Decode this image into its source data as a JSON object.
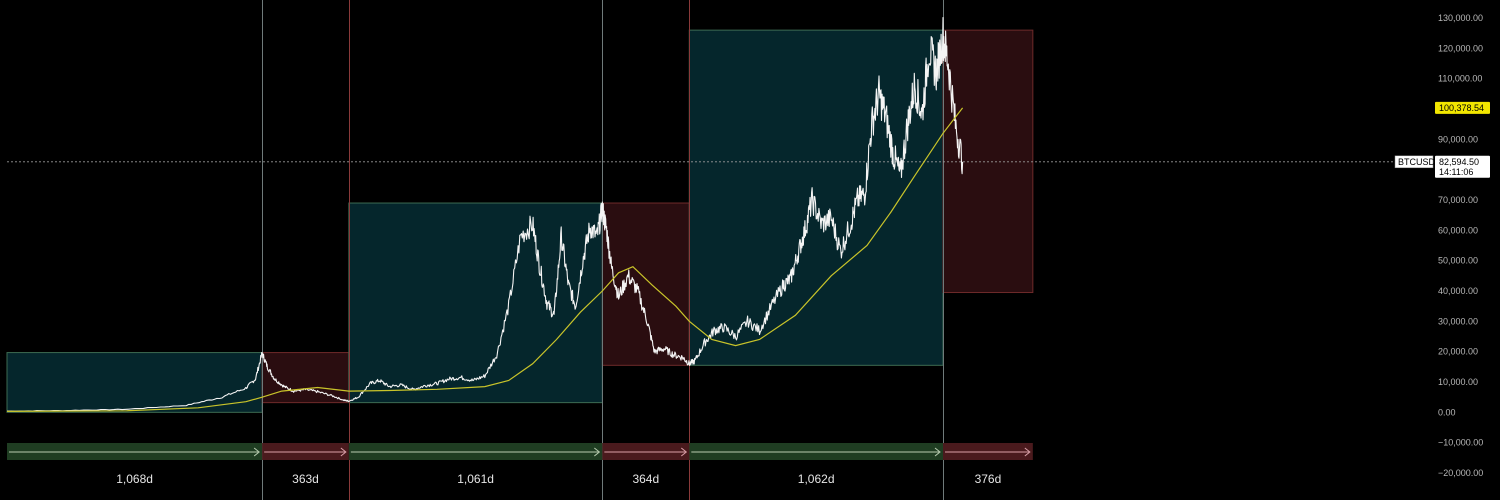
{
  "chart_data": {
    "type": "line",
    "symbol": "BTCUSD",
    "y_axis": {
      "min": -20000,
      "max": 130000,
      "ticks": [
        130000,
        120000,
        110000,
        100000,
        90000,
        80000,
        70000,
        60000,
        50000,
        40000,
        30000,
        20000,
        10000,
        0,
        -10000,
        -20000
      ],
      "tick_labels": [
        "130,000.00",
        "120,000.00",
        "110,000.00",
        "",
        "90,000.00",
        "",
        "70,000.00",
        "60,000.00",
        "50,000.00",
        "40,000.00",
        "30,000.00",
        "20,000.00",
        "10,000.00",
        "0.00",
        "−10,000.00",
        "−20,000.00"
      ]
    },
    "price_tags": {
      "ma": {
        "value": 100378.54,
        "label": "100,378.54",
        "color": "#f2e600"
      },
      "last": {
        "value": 82594.5,
        "label": "82,594.50",
        "countdown": "14:11:06",
        "symbol_label": "BTCUSD"
      }
    },
    "phases": [
      {
        "kind": "bull",
        "x_start": 0.0,
        "x_end": 1.068,
        "y_low": 0,
        "y_high": 19700,
        "duration_label": "1,068d"
      },
      {
        "kind": "bear",
        "x_start": 1.068,
        "x_end": 1.431,
        "y_low": 3200,
        "y_high": 19700,
        "duration_label": "363d"
      },
      {
        "kind": "bull",
        "x_start": 1.431,
        "x_end": 2.492,
        "y_low": 3200,
        "y_high": 69000,
        "duration_label": "1,061d"
      },
      {
        "kind": "bear",
        "x_start": 2.492,
        "x_end": 2.856,
        "y_low": 15500,
        "y_high": 69000,
        "duration_label": "364d"
      },
      {
        "kind": "bull",
        "x_start": 2.856,
        "x_end": 3.918,
        "y_low": 15500,
        "y_high": 126000,
        "duration_label": "1,062d"
      },
      {
        "kind": "bear",
        "x_start": 3.918,
        "x_end": 4.294,
        "y_low": 39500,
        "y_high": 126000,
        "duration_label": "376d"
      }
    ],
    "price_series": {
      "name": "",
      "x": [
        0,
        0.25,
        0.5,
        0.75,
        0.9,
        1.0,
        1.04,
        1.068,
        1.09,
        1.12,
        1.16,
        1.2,
        1.25,
        1.3,
        1.36,
        1.41,
        1.431,
        1.47,
        1.52,
        1.56,
        1.6,
        1.65,
        1.7,
        1.75,
        1.8,
        1.85,
        1.9,
        1.95,
        2.0,
        2.05,
        2.1,
        2.15,
        2.2,
        2.23,
        2.26,
        2.29,
        2.32,
        2.35,
        2.38,
        2.41,
        2.44,
        2.47,
        2.492,
        2.51,
        2.53,
        2.56,
        2.6,
        2.64,
        2.68,
        2.71,
        2.75,
        2.79,
        2.83,
        2.856,
        2.88,
        2.92,
        2.96,
        3.0,
        3.05,
        3.1,
        3.15,
        3.2,
        3.25,
        3.28,
        3.31,
        3.34,
        3.37,
        3.41,
        3.45,
        3.49,
        3.53,
        3.56,
        3.59,
        3.62,
        3.65,
        3.68,
        3.71,
        3.74,
        3.77,
        3.8,
        3.83,
        3.86,
        3.89,
        3.918,
        3.94,
        3.97,
        4.0
      ],
      "values": [
        400,
        600,
        1000,
        2300,
        5000,
        8000,
        11000,
        19500,
        15000,
        11000,
        8500,
        7000,
        7500,
        6800,
        5500,
        4000,
        3700,
        5000,
        9500,
        10500,
        8500,
        9000,
        7500,
        8800,
        9500,
        11000,
        11500,
        10500,
        12000,
        19000,
        35000,
        58000,
        62000,
        48000,
        36000,
        32000,
        58000,
        42000,
        35000,
        50000,
        61000,
        58000,
        67000,
        60000,
        48000,
        38000,
        45000,
        40000,
        30000,
        20000,
        21000,
        19000,
        18000,
        16000,
        17000,
        23000,
        27000,
        28000,
        25000,
        30000,
        27000,
        35000,
        42000,
        44000,
        52000,
        60000,
        70000,
        62000,
        64000,
        53000,
        62000,
        70000,
        72000,
        95000,
        105000,
        97000,
        85000,
        78000,
        95000,
        108000,
        98000,
        120000,
        112000,
        124000,
        115000,
        95000,
        82594
      ]
    },
    "ma_series": {
      "name": "",
      "x": [
        0,
        0.5,
        0.8,
        1.0,
        1.068,
        1.15,
        1.3,
        1.431,
        1.6,
        1.8,
        2.0,
        2.1,
        2.2,
        2.3,
        2.4,
        2.492,
        2.56,
        2.62,
        2.7,
        2.8,
        2.856,
        2.95,
        3.05,
        3.15,
        3.3,
        3.45,
        3.6,
        3.7,
        3.8,
        3.918,
        4.0
      ],
      "values": [
        300,
        500,
        1500,
        3500,
        5000,
        7000,
        8200,
        7000,
        7200,
        7600,
        8500,
        10500,
        16000,
        24000,
        33000,
        40000,
        46000,
        48000,
        42000,
        35000,
        30000,
        24000,
        22000,
        24000,
        32000,
        45000,
        55000,
        66000,
        78000,
        92000,
        100378.54
      ]
    }
  }
}
